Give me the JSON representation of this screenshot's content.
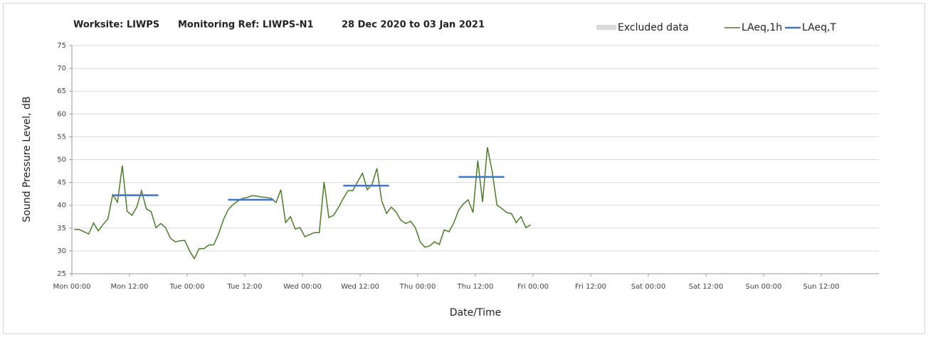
{
  "chart_data": {
    "type": "line",
    "title_parts": [
      "Worksite: LIWPS",
      "Monitoring Ref: LIWPS-N1",
      "28 Dec 2020 to 03 Jan 2021"
    ],
    "xlabel": "Date/Time",
    "ylabel": "Sound Pressure Level, dB",
    "xlim": [
      0,
      168
    ],
    "xticks": [
      {
        "value": 0,
        "label": "Mon 00:00"
      },
      {
        "value": 12,
        "label": "Mon 12:00"
      },
      {
        "value": 24,
        "label": "Tue 00:00"
      },
      {
        "value": 36,
        "label": "Tue 12:00"
      },
      {
        "value": 48,
        "label": "Wed 00:00"
      },
      {
        "value": 60,
        "label": "Wed 12:00"
      },
      {
        "value": 72,
        "label": "Thu 00:00"
      },
      {
        "value": 84,
        "label": "Thu 12:00"
      },
      {
        "value": 96,
        "label": "Fri 00:00"
      },
      {
        "value": 108,
        "label": "Fri 12:00"
      },
      {
        "value": 120,
        "label": "Sat 00:00"
      },
      {
        "value": 132,
        "label": "Sat 12:00"
      },
      {
        "value": 144,
        "label": "Sun 00:00"
      },
      {
        "value": 156,
        "label": "Sun 12:00"
      }
    ],
    "ylim": [
      25,
      75
    ],
    "yticks": [
      25,
      30,
      35,
      40,
      45,
      50,
      55,
      60,
      65,
      70,
      75
    ],
    "grid": true,
    "excluded": {
      "name": "Excluded data",
      "color": "#d9d9d9"
    },
    "series": [
      {
        "name": "LAeq,1h",
        "color": "#4e7a2e",
        "x": [
          0.5,
          1.5,
          2.5,
          3.5,
          4.5,
          5.5,
          6.5,
          7.5,
          8.5,
          9.5,
          10.5,
          11.5,
          12.5,
          13.5,
          14.5,
          15.5,
          16.5,
          17.5,
          18.5,
          19.5,
          20.5,
          21.5,
          22.5,
          23.5,
          24.5,
          25.5,
          26.5,
          27.5,
          28.5,
          29.5,
          30.5,
          31.5,
          32.5,
          33.5,
          34.5,
          35.5,
          36.5,
          37.5,
          38.5,
          39.5,
          40.5,
          41.5,
          42.5,
          43.5,
          44.5,
          45.5,
          46.5,
          47.5,
          48.5,
          49.5,
          50.5,
          51.5,
          52.5,
          53.5,
          54.5,
          55.5,
          56.5,
          57.5,
          58.5,
          59.5,
          60.5,
          61.5,
          62.5,
          63.5,
          64.5,
          65.5,
          66.5,
          67.5,
          68.5,
          69.5,
          70.5,
          71.5,
          72.5,
          73.5,
          74.5,
          75.5,
          76.5,
          77.5,
          78.5,
          79.5,
          80.5,
          81.5,
          82.5,
          83.5,
          84.5,
          85.5,
          86.5,
          87.5,
          88.5,
          89.5,
          90.5,
          91.5,
          92.5,
          93.5,
          94.5,
          95.5
        ],
        "values": [
          34.7,
          34.7,
          34.2,
          33.7,
          36.1,
          34.4,
          35.8,
          37.0,
          42.3,
          40.7,
          48.7,
          38.7,
          37.8,
          39.6,
          43.2,
          39.2,
          38.6,
          35.1,
          36.0,
          35.1,
          32.8,
          32.0,
          32.2,
          32.3,
          30.0,
          28.3,
          30.5,
          30.5,
          31.3,
          31.3,
          33.6,
          36.7,
          39.0,
          40.1,
          40.9,
          41.5,
          41.7,
          42.1,
          42.0,
          41.8,
          41.7,
          41.5,
          40.6,
          43.4,
          36.2,
          37.5,
          34.8,
          35.1,
          33.1,
          33.6,
          34.0,
          34.0,
          45.1,
          37.3,
          37.8,
          39.5,
          41.5,
          43.2,
          43.2,
          45.2,
          47.0,
          43.4,
          44.6,
          48.1,
          41.0,
          38.2,
          39.6,
          38.5,
          36.7,
          36.0,
          36.5,
          35.1,
          32.0,
          30.8,
          31.1,
          32.0,
          31.4,
          34.6,
          34.2,
          36.1,
          38.9,
          40.3,
          41.2,
          38.4,
          49.8,
          40.7,
          52.7,
          47.4,
          40.0,
          39.3,
          38.4,
          38.2,
          36.2,
          37.5,
          35.1,
          35.7
        ]
      },
      {
        "name": "LAeq,T",
        "color": "#4472c4",
        "type": "segments",
        "segments": [
          {
            "x": [
              8.5,
              18
            ],
            "value": 42.2
          },
          {
            "x": [
              32.5,
              42
            ],
            "value": 41.2
          },
          {
            "x": [
              56.5,
              66
            ],
            "value": 44.3
          },
          {
            "x": [
              80.5,
              90
            ],
            "value": 46.2
          }
        ]
      }
    ]
  }
}
